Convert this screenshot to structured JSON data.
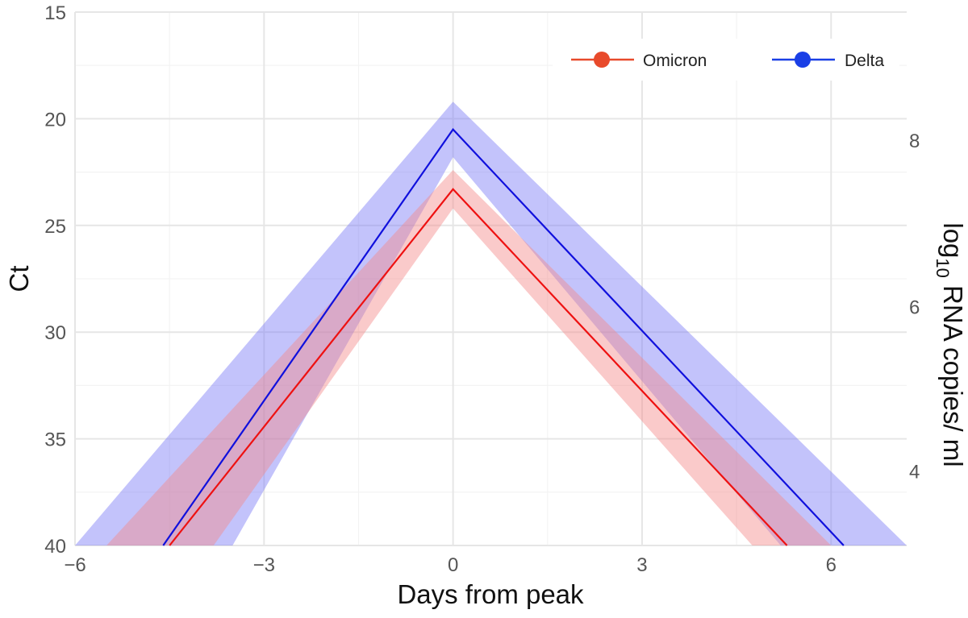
{
  "chart_data": {
    "type": "line",
    "xlabel": "Days from peak",
    "ylabel": "Ct",
    "y2label_base": "log",
    "y2label_sub": "10",
    "y2label_rest": " RNA copies/ ml",
    "xlim": [
      -6,
      7.2
    ],
    "ylim": [
      15,
      40
    ],
    "y_reversed": true,
    "x_ticks": [
      -6,
      -3,
      0,
      3,
      6
    ],
    "x_tick_labels": [
      "−6",
      "−3",
      "0",
      "3",
      "6"
    ],
    "y_ticks": [
      15,
      20,
      25,
      30,
      35,
      40
    ],
    "y_tick_labels": [
      "15",
      "20",
      "25",
      "30",
      "35",
      "40"
    ],
    "y2_ticks_ct": [
      21.0,
      28.8,
      36.5
    ],
    "y2_tick_labels": [
      "8",
      "6",
      "4"
    ],
    "grid": true,
    "legend_position": "top-right",
    "series": [
      {
        "name": "Delta",
        "color": "#1010DD",
        "band_color": "#7B7BF6",
        "line": [
          [
            -4.6,
            40
          ],
          [
            0,
            20.5
          ],
          [
            6.2,
            40
          ]
        ],
        "band_upper": [
          [
            -6,
            40
          ],
          [
            0,
            19.2
          ],
          [
            7.2,
            40
          ]
        ],
        "band_lower": [
          [
            -3.5,
            40
          ],
          [
            0,
            21.8
          ],
          [
            5.2,
            40
          ]
        ]
      },
      {
        "name": "Omicron",
        "color": "#EE1111",
        "band_color": "#F58A8A",
        "line": [
          [
            -4.5,
            40
          ],
          [
            0,
            23.3
          ],
          [
            5.3,
            40
          ]
        ],
        "band_upper": [
          [
            -5.5,
            40
          ],
          [
            0,
            22.4
          ],
          [
            6.0,
            40
          ]
        ],
        "band_lower": [
          [
            -3.8,
            40
          ],
          [
            0,
            24.2
          ],
          [
            4.75,
            40
          ]
        ]
      }
    ],
    "legend": [
      {
        "label": "Omicron",
        "color": "#E84A2B"
      },
      {
        "label": "Delta",
        "color": "#1A3FE6"
      }
    ]
  }
}
